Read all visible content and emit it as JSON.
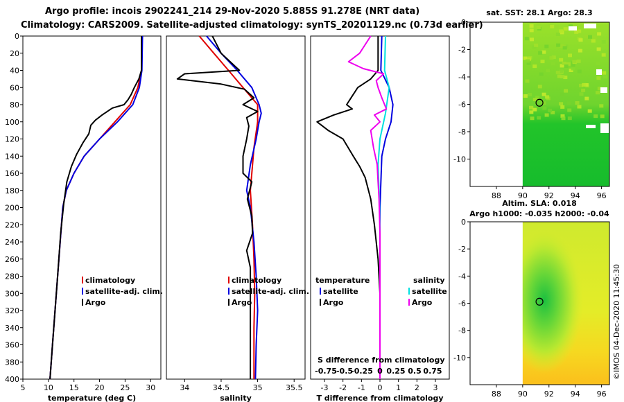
{
  "title_line1": "Argo profile: incois 2902241_214 29-Nov-2020 5.885S 91.278E (NRT data)",
  "title_line2": "Climatology: CARS2009. Satellite-adjusted climatology: synTS_20201129.nc (0.73d earlier)",
  "credit": "©IMOS 04-Dec-2020 11:45:30",
  "colors": {
    "climatology": "#e00000",
    "satellite": "#0000e0",
    "argo": "#000000",
    "sat_salinity": "#00e0e0",
    "argo_salinity": "#ee00ee"
  },
  "chart_data": [
    {
      "type": "line",
      "id": "temperature",
      "xlabel": "temperature (deg C)",
      "xlim": [
        5,
        32
      ],
      "ylim": [
        400,
        0
      ],
      "xticks": [
        "5",
        "10",
        "15",
        "20",
        "25",
        "30"
      ],
      "yticks": [
        "0",
        "20",
        "40",
        "60",
        "80",
        "100",
        "120",
        "140",
        "160",
        "180",
        "200",
        "220",
        "240",
        "260",
        "280",
        "300",
        "320",
        "340",
        "360",
        "380",
        "400"
      ],
      "legend": [
        "climatology",
        "satellite-adj. clim.",
        "Argo"
      ],
      "series": [
        {
          "name": "climatology",
          "color": "#e00000",
          "points": [
            [
              28.3,
              0
            ],
            [
              28.2,
              40
            ],
            [
              27.5,
              60
            ],
            [
              26,
              80
            ],
            [
              23,
              100
            ],
            [
              20,
              120
            ],
            [
              17,
              140
            ],
            [
              15,
              160
            ],
            [
              13.5,
              180
            ],
            [
              12.8,
              200
            ],
            [
              12.3,
              240
            ],
            [
              11.8,
              280
            ],
            [
              11.3,
              320
            ],
            [
              10.8,
              360
            ],
            [
              10.3,
              400
            ]
          ]
        },
        {
          "name": "satellite-adj. clim.",
          "color": "#0000e0",
          "points": [
            [
              28.4,
              0
            ],
            [
              28.3,
              40
            ],
            [
              27.8,
              60
            ],
            [
              26.5,
              80
            ],
            [
              23.5,
              100
            ],
            [
              20,
              120
            ],
            [
              17,
              140
            ],
            [
              15,
              160
            ],
            [
              13.5,
              180
            ],
            [
              12.8,
              200
            ],
            [
              12.3,
              240
            ],
            [
              11.8,
              280
            ],
            [
              11.3,
              320
            ],
            [
              10.8,
              360
            ],
            [
              10.3,
              400
            ]
          ]
        },
        {
          "name": "Argo",
          "color": "#000000",
          "points": [
            [
              28.2,
              0
            ],
            [
              28.2,
              40
            ],
            [
              27.7,
              50
            ],
            [
              26.8,
              60
            ],
            [
              26.2,
              68
            ],
            [
              25.6,
              74
            ],
            [
              24.8,
              80
            ],
            [
              22.5,
              84
            ],
            [
              20.5,
              92
            ],
            [
              19.2,
              98
            ],
            [
              18.3,
              104
            ],
            [
              17.9,
              114
            ],
            [
              16.8,
              124
            ],
            [
              15.5,
              138
            ],
            [
              14.5,
              152
            ],
            [
              13.6,
              170
            ],
            [
              13,
              195
            ],
            [
              12.4,
              230
            ],
            [
              11.8,
              280
            ],
            [
              11.3,
              320
            ],
            [
              10.8,
              360
            ],
            [
              10.3,
              400
            ]
          ]
        }
      ]
    },
    {
      "type": "line",
      "id": "salinity",
      "xlabel": "salinity",
      "xlim": [
        33.75,
        35.65
      ],
      "ylim": [
        400,
        0
      ],
      "xticks": [
        "34",
        "34.5",
        "35",
        "35.5"
      ],
      "legend": [
        "climatology",
        "satellite-adj. clim.",
        "Argo"
      ],
      "series": [
        {
          "name": "climatology",
          "color": "#e00000",
          "points": [
            [
              34.2,
              0
            ],
            [
              34.4,
              20
            ],
            [
              34.6,
              40
            ],
            [
              34.8,
              60
            ],
            [
              35,
              80
            ],
            [
              35,
              100
            ],
            [
              34.95,
              130
            ],
            [
              34.92,
              160
            ],
            [
              34.9,
              180
            ],
            [
              34.93,
              220
            ],
            [
              34.95,
              260
            ],
            [
              34.96,
              300
            ],
            [
              34.95,
              340
            ],
            [
              34.95,
              400
            ]
          ]
        },
        {
          "name": "satellite-adj. clim.",
          "color": "#0000e0",
          "points": [
            [
              34.3,
              0
            ],
            [
              34.5,
              20
            ],
            [
              34.72,
              40
            ],
            [
              34.92,
              60
            ],
            [
              35.02,
              80
            ],
            [
              35.05,
              90
            ],
            [
              35.02,
              100
            ],
            [
              34.98,
              120
            ],
            [
              34.9,
              150
            ],
            [
              34.85,
              180
            ],
            [
              34.9,
              200
            ],
            [
              34.95,
              240
            ],
            [
              34.98,
              280
            ],
            [
              35,
              320
            ],
            [
              34.98,
              360
            ],
            [
              34.97,
              400
            ]
          ]
        },
        {
          "name": "Argo",
          "color": "#000000",
          "points": [
            [
              34.38,
              0
            ],
            [
              34.5,
              20
            ],
            [
              34.75,
              40
            ],
            [
              34.0,
              44
            ],
            [
              33.9,
              50
            ],
            [
              34.5,
              56
            ],
            [
              34.82,
              62
            ],
            [
              34.95,
              72
            ],
            [
              34.8,
              80
            ],
            [
              35,
              88
            ],
            [
              34.85,
              95
            ],
            [
              34.88,
              105
            ],
            [
              34.85,
              120
            ],
            [
              34.8,
              140
            ],
            [
              34.8,
              160
            ],
            [
              34.92,
              170
            ],
            [
              34.86,
              190
            ],
            [
              34.92,
              210
            ],
            [
              34.93,
              230
            ],
            [
              34.85,
              250
            ],
            [
              34.9,
              270
            ],
            [
              34.9,
              300
            ],
            [
              34.9,
              340
            ],
            [
              34.9,
              400
            ]
          ]
        }
      ]
    },
    {
      "type": "line",
      "id": "difference",
      "xlabel": "T difference from climatology",
      "xlabel_top": "S difference from climatology",
      "xlim": [
        -3.75,
        3.75
      ],
      "ylim": [
        400,
        0
      ],
      "xticks": [
        "-3",
        "-2",
        "-1",
        "0",
        "1",
        "2",
        "3"
      ],
      "xticks_top": [
        "-0.75",
        "-0.5",
        "-0.25",
        "0",
        "0.25",
        "0.5",
        "0.75"
      ],
      "legend_temperature": {
        "heading": "temperature",
        "items": [
          "satellite",
          "Argo"
        ]
      },
      "legend_salinity": {
        "heading": "salinity",
        "items": [
          "satellite",
          "Argo"
        ]
      },
      "series": [
        {
          "name": "T satellite",
          "color": "#0000e0",
          "points": [
            [
              0.1,
              0
            ],
            [
              0.05,
              40
            ],
            [
              0.5,
              60
            ],
            [
              0.7,
              80
            ],
            [
              0.6,
              100
            ],
            [
              0.3,
              120
            ],
            [
              0.1,
              140
            ],
            [
              0,
              200
            ],
            [
              0,
              400
            ]
          ]
        },
        {
          "name": "T Argo",
          "color": "#000000",
          "points": [
            [
              -0.1,
              0
            ],
            [
              -0.1,
              40
            ],
            [
              -0.5,
              50
            ],
            [
              -1.2,
              60
            ],
            [
              -1.5,
              70
            ],
            [
              -1.8,
              80
            ],
            [
              -1.5,
              85
            ],
            [
              -2.5,
              92
            ],
            [
              -3.4,
              100
            ],
            [
              -2.8,
              110
            ],
            [
              -2.0,
              120
            ],
            [
              -1.5,
              138
            ],
            [
              -1.1,
              152
            ],
            [
              -0.8,
              165
            ],
            [
              -0.5,
              190
            ],
            [
              -0.3,
              220
            ],
            [
              -0.1,
              260
            ],
            [
              0,
              300
            ],
            [
              0,
              400
            ]
          ]
        },
        {
          "name": "S satellite",
          "color": "#00e0e0",
          "points": [
            [
              0.3,
              0
            ],
            [
              0.25,
              40
            ],
            [
              0.5,
              60
            ],
            [
              0.3,
              90
            ],
            [
              0,
              120
            ],
            [
              -0.1,
              150
            ],
            [
              -0.05,
              180
            ],
            [
              0,
              220
            ],
            [
              0,
              260
            ],
            [
              0,
              300
            ],
            [
              0,
              400
            ]
          ]
        },
        {
          "name": "S Argo",
          "color": "#ee00ee",
          "points": [
            [
              -0.5,
              0
            ],
            [
              -1.1,
              20
            ],
            [
              -1.7,
              30
            ],
            [
              -0.9,
              38
            ],
            [
              0.2,
              44
            ],
            [
              -0.2,
              52
            ],
            [
              -0.1,
              60
            ],
            [
              0.1,
              72
            ],
            [
              0.35,
              85
            ],
            [
              -0.3,
              92
            ],
            [
              0,
              100
            ],
            [
              -0.5,
              110
            ],
            [
              -0.35,
              130
            ],
            [
              -0.15,
              150
            ],
            [
              -0.1,
              170
            ],
            [
              -0.05,
              190
            ],
            [
              0,
              230
            ],
            [
              0,
              300
            ],
            [
              0,
              400
            ]
          ]
        }
      ]
    },
    {
      "type": "heatmap",
      "id": "sst_map",
      "title": "sat. SST: 28.1 Argo: 28.3",
      "xlim": [
        86,
        96.6
      ],
      "ylim": [
        -12,
        0
      ],
      "xticks": [
        "88",
        "90",
        "92",
        "94",
        "96"
      ],
      "yticks": [
        "0",
        "-2",
        "-4",
        "-6",
        "-8",
        "-10"
      ],
      "data_lon_start": 90,
      "argo_position": {
        "lon": 91.278,
        "lat": -5.885
      }
    },
    {
      "type": "heatmap",
      "id": "sla_map",
      "title_line1": "Altim. SLA: 0.018",
      "title_line2": "Argo h1000: -0.035 h2000: -0.04",
      "xlim": [
        86,
        96.6
      ],
      "ylim": [
        -12,
        0
      ],
      "xticks": [
        "88",
        "90",
        "92",
        "94",
        "96"
      ],
      "yticks": [
        "0",
        "-2",
        "-4",
        "-6",
        "-8",
        "-10"
      ],
      "data_lon_start": 90,
      "argo_position": {
        "lon": 91.278,
        "lat": -5.885
      }
    }
  ]
}
